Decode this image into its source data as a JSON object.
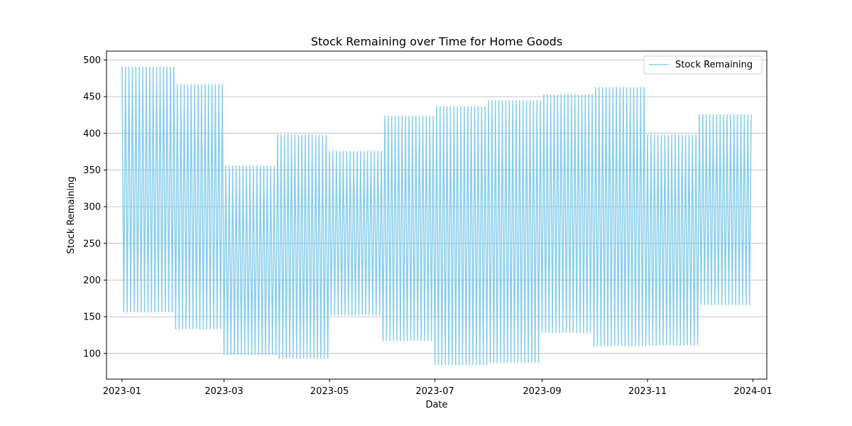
{
  "chart_data": {
    "type": "line",
    "title": "Stock Remaining over Time for Home Goods",
    "xlabel": "Date",
    "ylabel": "Stock Remaining",
    "xlim": [
      "2022-12-23",
      "2024-01-09"
    ],
    "ylim": [
      65,
      512
    ],
    "x_ticks": [
      "2023-01",
      "2023-03",
      "2023-05",
      "2023-07",
      "2023-09",
      "2023-11",
      "2024-01"
    ],
    "y_ticks": [
      100,
      150,
      200,
      250,
      300,
      350,
      400,
      450,
      500
    ],
    "grid": "y",
    "legend": {
      "position": "top-right",
      "entries": [
        "Stock Remaining"
      ]
    },
    "series": [
      {
        "name": "Stock Remaining",
        "color": "#87CEEB",
        "note_pattern": "daily values alternate between the period's high and low",
        "periods": [
          {
            "start": "2023-01-01",
            "end": "2023-01-31",
            "high": 491,
            "low": 156
          },
          {
            "start": "2023-02-01",
            "end": "2023-02-28",
            "high": 467,
            "low": 133
          },
          {
            "start": "2023-03-01",
            "end": "2023-03-31",
            "high": 356,
            "low": 98
          },
          {
            "start": "2023-04-01",
            "end": "2023-04-30",
            "high": 398,
            "low": 93
          },
          {
            "start": "2023-05-01",
            "end": "2023-05-31",
            "high": 376,
            "low": 152
          },
          {
            "start": "2023-06-01",
            "end": "2023-06-30",
            "high": 424,
            "low": 117
          },
          {
            "start": "2023-07-01",
            "end": "2023-07-31",
            "high": 437,
            "low": 84
          },
          {
            "start": "2023-08-01",
            "end": "2023-08-31",
            "high": 445,
            "low": 87
          },
          {
            "start": "2023-09-01",
            "end": "2023-09-30",
            "high": 453,
            "low": 128
          },
          {
            "start": "2023-10-01",
            "end": "2023-10-31",
            "high": 463,
            "low": 110
          },
          {
            "start": "2023-11-01",
            "end": "2023-11-30",
            "high": 398,
            "low": 111
          },
          {
            "start": "2023-12-01",
            "end": "2023-12-31",
            "high": 426,
            "low": 166
          }
        ]
      }
    ]
  }
}
